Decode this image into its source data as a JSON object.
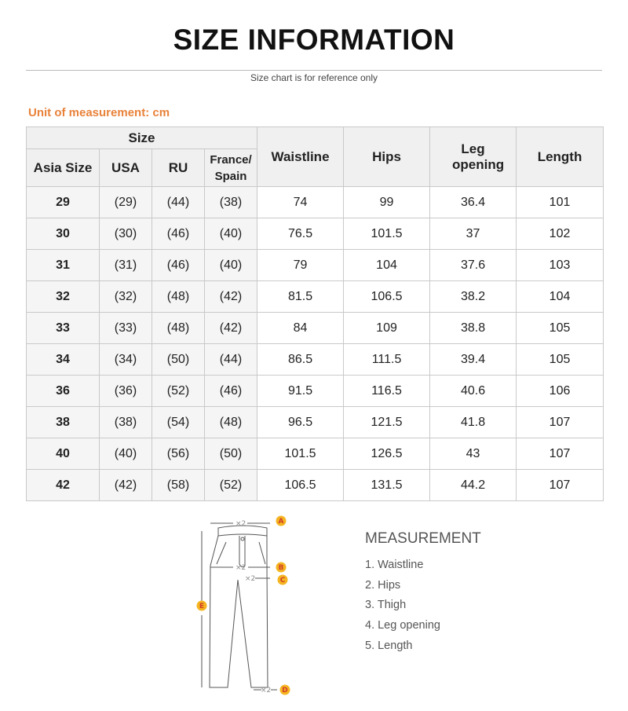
{
  "title": "SIZE INFORMATION",
  "subtitle": "Size chart is for reference only",
  "unit_label": "Unit of measurement: cm",
  "table": {
    "group_header": "Size",
    "size_headers": [
      "Asia Size",
      "USA",
      "RU",
      "France/ Spain"
    ],
    "measure_headers": [
      "Waistline",
      "Hips",
      "Leg opening",
      "Length"
    ],
    "rows": [
      [
        "29",
        "(29)",
        "(44)",
        "(38)",
        "74",
        "99",
        "36.4",
        "101"
      ],
      [
        "30",
        "(30)",
        "(46)",
        "(40)",
        "76.5",
        "101.5",
        "37",
        "102"
      ],
      [
        "31",
        "(31)",
        "(46)",
        "(40)",
        "79",
        "104",
        "37.6",
        "103"
      ],
      [
        "32",
        "(32)",
        "(48)",
        "(42)",
        "81.5",
        "106.5",
        "38.2",
        "104"
      ],
      [
        "33",
        "(33)",
        "(48)",
        "(42)",
        "84",
        "109",
        "38.8",
        "105"
      ],
      [
        "34",
        "(34)",
        "(50)",
        "(44)",
        "86.5",
        "111.5",
        "39.4",
        "105"
      ],
      [
        "36",
        "(36)",
        "(52)",
        "(46)",
        "91.5",
        "116.5",
        "40.6",
        "106"
      ],
      [
        "38",
        "(38)",
        "(54)",
        "(48)",
        "96.5",
        "121.5",
        "41.8",
        "107"
      ],
      [
        "40",
        "(40)",
        "(56)",
        "(50)",
        "101.5",
        "126.5",
        "43",
        "107"
      ],
      [
        "42",
        "(42)",
        "(58)",
        "(52)",
        "106.5",
        "131.5",
        "44.2",
        "107"
      ]
    ]
  },
  "diagram": {
    "markers": [
      "A",
      "B",
      "C",
      "D",
      "E"
    ],
    "multiplier": "×2",
    "marker_color": "#f5b521"
  },
  "measurement": {
    "title": "MEASUREMENT",
    "items": [
      "1. Waistline",
      "2. Hips",
      "3. Thigh",
      "4. Leg opening",
      "5. Length"
    ]
  }
}
